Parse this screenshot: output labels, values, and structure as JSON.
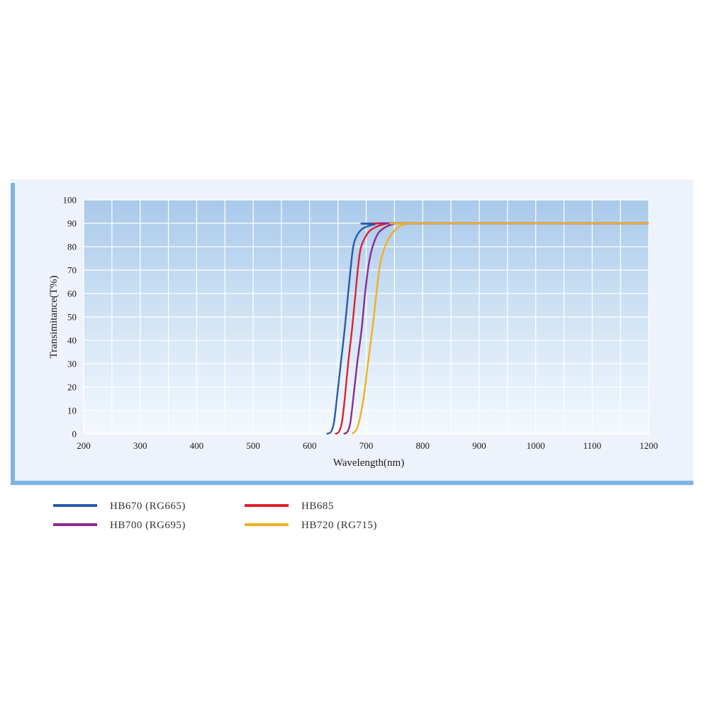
{
  "chart_data": {
    "type": "line",
    "title": "",
    "xlabel": "Wavelength(nm)",
    "ylabel": "Transimitance(T%)",
    "xlim": [
      200,
      1200
    ],
    "ylim": [
      0,
      100
    ],
    "x_ticks": [
      "200",
      "300",
      "400",
      "500",
      "600",
      "700",
      "800",
      "900",
      "1000",
      "1100",
      "1200"
    ],
    "y_ticks": [
      "0",
      "10",
      "20",
      "30",
      "40",
      "50",
      "60",
      "70",
      "80",
      "90",
      "100"
    ],
    "grid": true,
    "legend_position": "below",
    "series": [
      {
        "name": "HB670 (RG665)",
        "color": "#2a5ba8",
        "points": [
          [
            630,
            0
          ],
          [
            638,
            1
          ],
          [
            643,
            5
          ],
          [
            648,
            15
          ],
          [
            655,
            30
          ],
          [
            662,
            45
          ],
          [
            668,
            60
          ],
          [
            673,
            72
          ],
          [
            677,
            80
          ],
          [
            682,
            84
          ],
          [
            690,
            87
          ],
          [
            700,
            88.5
          ],
          [
            715,
            89.5
          ],
          [
            730,
            90
          ],
          [
            1200,
            90
          ]
        ]
      },
      {
        "name": "HB685",
        "color": "#e02030",
        "points": [
          [
            645,
            0
          ],
          [
            652,
            1
          ],
          [
            657,
            5
          ],
          [
            662,
            15
          ],
          [
            668,
            30
          ],
          [
            675,
            45
          ],
          [
            681,
            60
          ],
          [
            686,
            72
          ],
          [
            690,
            79
          ],
          [
            696,
            83
          ],
          [
            705,
            86.5
          ],
          [
            718,
            88.5
          ],
          [
            735,
            89.8
          ],
          [
            750,
            90
          ],
          [
            1200,
            90
          ]
        ]
      },
      {
        "name": "HB700 (RG695)",
        "color": "#8e2a8e",
        "points": [
          [
            660,
            0
          ],
          [
            667,
            1
          ],
          [
            672,
            5
          ],
          [
            677,
            15
          ],
          [
            684,
            30
          ],
          [
            692,
            45
          ],
          [
            698,
            60
          ],
          [
            703,
            70
          ],
          [
            708,
            77
          ],
          [
            714,
            82
          ],
          [
            722,
            86
          ],
          [
            735,
            88.5
          ],
          [
            750,
            89.8
          ],
          [
            760,
            90
          ],
          [
            1200,
            90
          ]
        ]
      },
      {
        "name": "HB720 (RG715)",
        "color": "#f0b020",
        "points": [
          [
            675,
            0
          ],
          [
            683,
            2
          ],
          [
            690,
            8
          ],
          [
            697,
            18
          ],
          [
            703,
            30
          ],
          [
            711,
            45
          ],
          [
            718,
            60
          ],
          [
            723,
            70
          ],
          [
            728,
            76
          ],
          [
            735,
            81
          ],
          [
            745,
            85.5
          ],
          [
            758,
            88.5
          ],
          [
            768,
            89.7
          ],
          [
            775,
            90
          ],
          [
            1200,
            90
          ]
        ]
      }
    ]
  }
}
